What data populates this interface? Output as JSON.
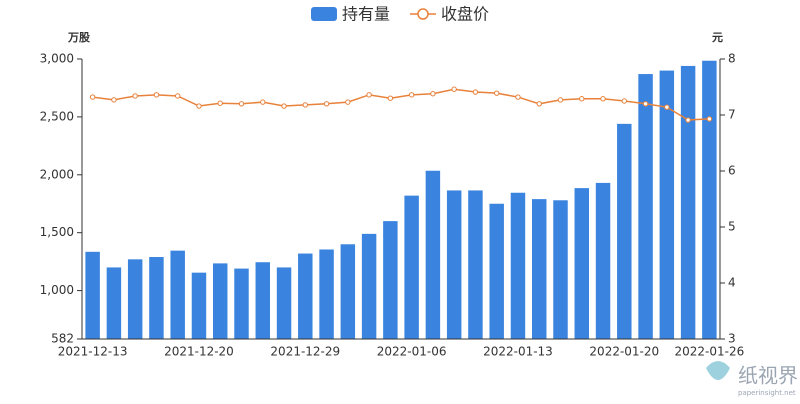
{
  "chart_data": {
    "type": "bar_line",
    "categories": [
      "2021-12-13",
      null,
      null,
      null,
      null,
      "2021-12-20",
      null,
      null,
      null,
      null,
      "2021-12-29",
      null,
      null,
      null,
      null,
      "2022-01-06",
      null,
      null,
      null,
      null,
      "2022-01-13",
      null,
      null,
      null,
      null,
      "2022-01-20",
      null,
      null,
      null,
      "2022-01-26"
    ],
    "series": [
      {
        "name": "持有量",
        "color": "#3a84e0",
        "axis": "y",
        "values": [
          1335,
          1200,
          1270,
          1290,
          1345,
          1155,
          1235,
          1190,
          1245,
          1200,
          1320,
          1355,
          1400,
          1490,
          1600,
          1820,
          2035,
          1865,
          1865,
          1750,
          1845,
          1790,
          1780,
          1885,
          1930,
          2440,
          2870,
          2900,
          2940,
          2985
        ]
      },
      {
        "name": "收盘价",
        "color": "#e8813a",
        "axis": "y2",
        "values": [
          7.32,
          7.27,
          7.34,
          7.36,
          7.34,
          7.16,
          7.21,
          7.2,
          7.23,
          7.16,
          7.18,
          7.2,
          7.23,
          7.36,
          7.3,
          7.36,
          7.38,
          7.46,
          7.41,
          7.39,
          7.32,
          7.2,
          7.27,
          7.29,
          7.29,
          7.25,
          7.2,
          7.14,
          6.91,
          6.93
        ]
      }
    ],
    "ylabel": "万股",
    "y2label": "元",
    "ylim": [
      582,
      3000
    ],
    "yticks": [
      582,
      {
        "value": 1000,
        "label": "1,000"
      },
      {
        "value": 1500,
        "label": "1,500"
      },
      {
        "value": 2000,
        "label": "2,000"
      },
      {
        "value": 2500,
        "label": "2,500"
      },
      {
        "value": 3000,
        "label": "3,000"
      }
    ],
    "y2lim": [
      3,
      8
    ],
    "y2ticks": [
      3,
      4,
      5,
      6,
      7,
      8
    ],
    "grid": false
  },
  "watermark": {
    "title": "纸视界",
    "subtitle": "paperinsight.net"
  }
}
